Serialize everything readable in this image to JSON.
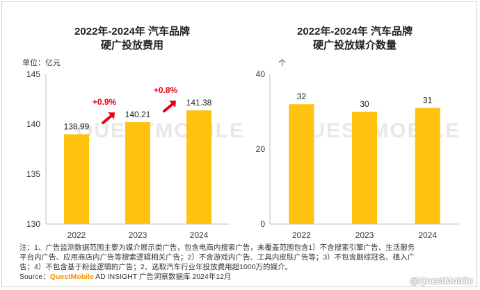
{
  "charts": [
    {
      "title_line1": "2022年-2024年 汽车品牌",
      "title_line2": "硬广投放费用",
      "unit": "单位：亿元"
    },
    {
      "title_line1": "2022年-2024年 汽车品牌",
      "title_line2": "硬广投放媒介数量",
      "unit": "个"
    }
  ],
  "chart_data": [
    {
      "type": "bar",
      "title": "2022年-2024年 汽车品牌 硬广投放费用",
      "ylabel": "单位：亿元",
      "categories": [
        "2022",
        "2023",
        "2024"
      ],
      "values": [
        138.99,
        140.21,
        141.38
      ],
      "value_labels": [
        "138.99",
        "140.21",
        "141.38"
      ],
      "yticks": [
        130,
        135,
        140,
        145
      ],
      "ylim": [
        130,
        145
      ],
      "growth_annotations": [
        {
          "text": "+0.9%",
          "between": [
            "2022",
            "2023"
          ]
        },
        {
          "text": "+0.8%",
          "between": [
            "2023",
            "2024"
          ]
        }
      ],
      "bar_color": "#ffc20e",
      "annotation_color": "#e60012",
      "grid": false
    },
    {
      "type": "bar",
      "title": "2022年-2024年 汽车品牌 硬广投放媒介数量",
      "ylabel": "个",
      "categories": [
        "2022",
        "2023",
        "2024"
      ],
      "values": [
        32,
        30,
        31
      ],
      "value_labels": [
        "32",
        "30",
        "31"
      ],
      "yticks": [
        0,
        20,
        40
      ],
      "ylim": [
        0,
        40
      ],
      "bar_color": "#ffc20e",
      "grid": false
    }
  ],
  "notes": {
    "line1": "注：1、广告监测数据范围主要为媒介展示类广告，包含电商内搜索广告，未覆盖范围包含1）不含搜索引擎广告、生活服务",
    "line2": "平台内广告、应用商店内广告等搜索逻辑相关广告；2）不含游戏内广告、工具内皮肤广告等；3）不包含剧综冠名、植入广",
    "line3": "告；4）不包含基于粉丝逻辑的广告；2、选取汽车行业年投放费用超1000万的媒介。",
    "source_prefix": "Source：",
    "source_brand": "QuestMobile",
    "source_rest": " AD INSIGHT 广告洞察数据库 2024年12月"
  },
  "watermark": {
    "text": "@QuestMobile",
    "bg_text": "QUESTMOBILE"
  }
}
